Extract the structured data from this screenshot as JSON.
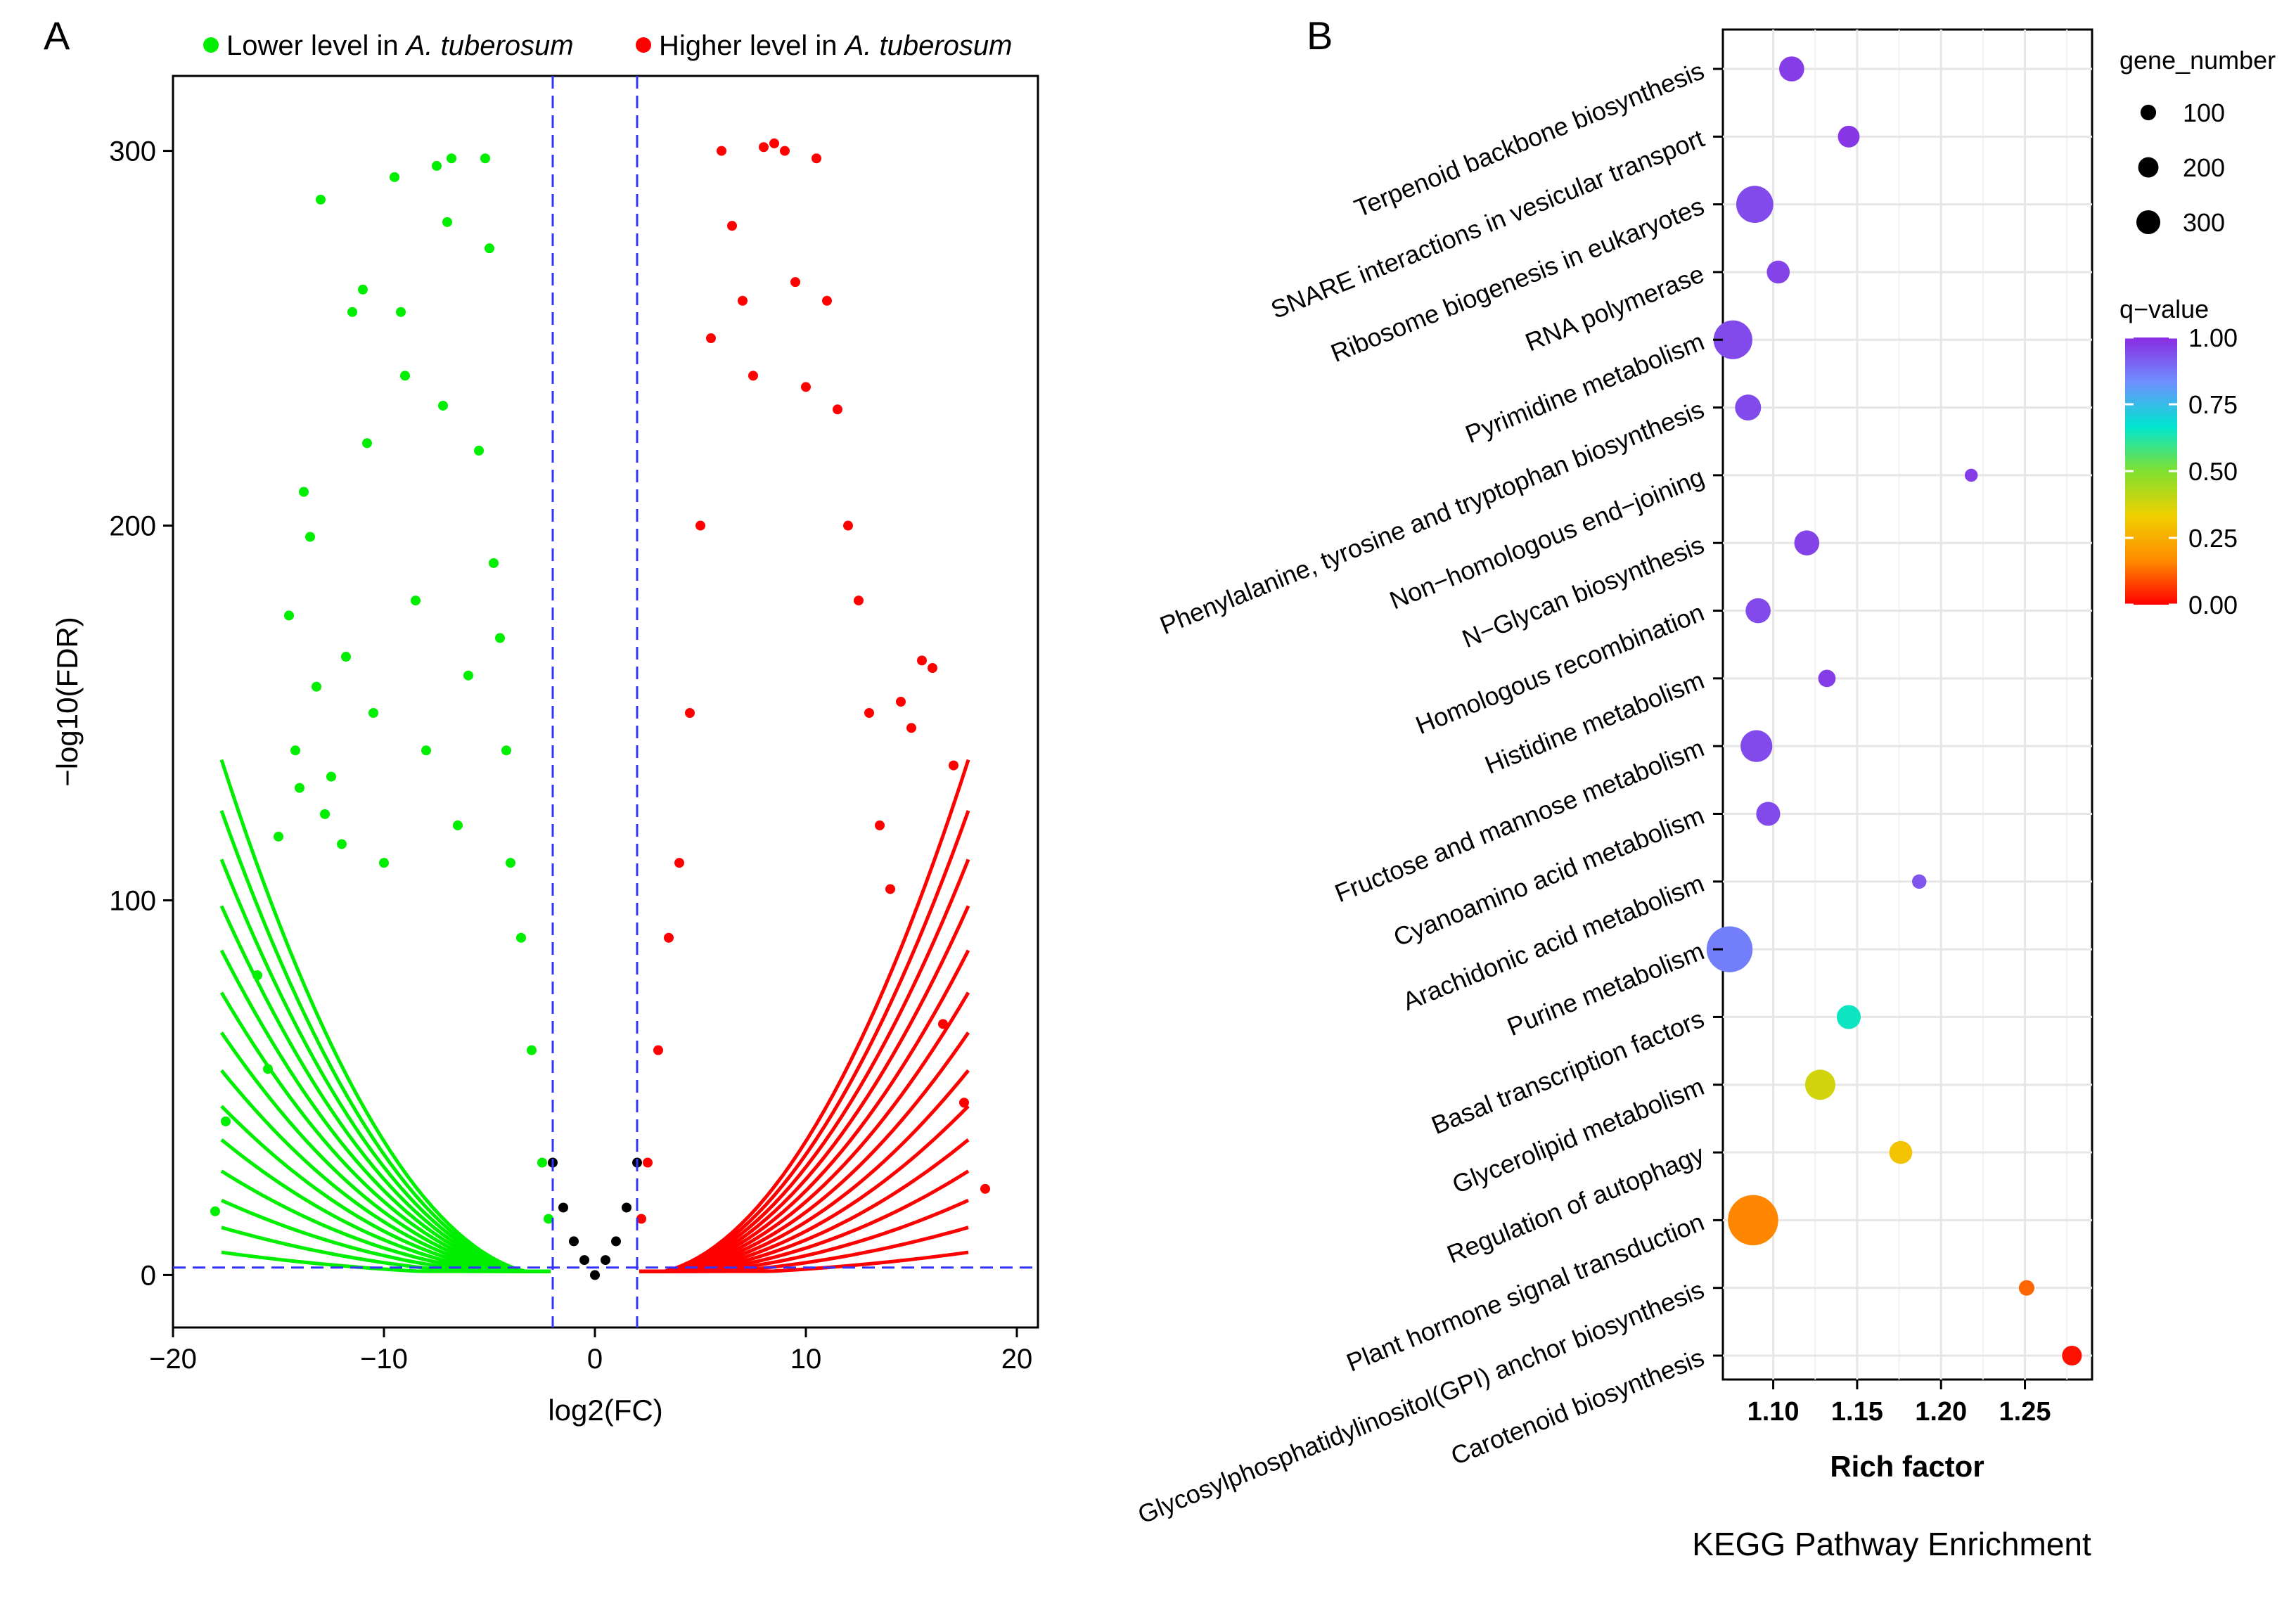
{
  "panel_labels": {
    "a": "A",
    "b": "B"
  },
  "colors": {
    "lower": "#00ee00",
    "higher": "#ff0000",
    "ns": "#000000",
    "threshold": "#3333ff"
  },
  "chart_data": [
    {
      "type": "scatter",
      "panel": "A",
      "title": "",
      "xlabel": "log2(FC)",
      "ylabel": "−log10(FDR)",
      "xlim": [
        -20,
        21
      ],
      "ylim": [
        -14,
        320
      ],
      "xticks": [
        {
          "v": -20,
          "label": "−20"
        },
        {
          "v": -10,
          "label": "−10"
        },
        {
          "v": 0,
          "label": "0"
        },
        {
          "v": 10,
          "label": "10"
        },
        {
          "v": 20,
          "label": "20"
        }
      ],
      "yticks": [
        {
          "v": 0,
          "label": "0"
        },
        {
          "v": 100,
          "label": "100"
        },
        {
          "v": 200,
          "label": "200"
        },
        {
          "v": 300,
          "label": "300"
        }
      ],
      "thresholds": {
        "x": [
          -2,
          2
        ],
        "y": 2
      },
      "legend": [
        {
          "name_prefix": "Lower level in ",
          "name_italic": "A. tuberosum",
          "color": "#00ee00"
        },
        {
          "name_prefix": "Higher level in ",
          "name_italic": "A. tuberosum",
          "color": "#ff0000"
        }
      ],
      "series": [
        {
          "name": "Lower level in A. tuberosum",
          "points": [
            [
              -18,
              17
            ],
            [
              -17.5,
              41
            ],
            [
              -16,
              80
            ],
            [
              -15.5,
              55
            ],
            [
              -15,
              117
            ],
            [
              -14.5,
              176
            ],
            [
              -14.2,
              140
            ],
            [
              -14,
              130
            ],
            [
              -13.8,
              209
            ],
            [
              -13.5,
              197
            ],
            [
              -13.2,
              157
            ],
            [
              -13,
              287
            ],
            [
              -12.8,
              123
            ],
            [
              -12.5,
              133
            ],
            [
              -12,
              115
            ],
            [
              -11.8,
              165
            ],
            [
              -11.5,
              257
            ],
            [
              -11,
              263
            ],
            [
              -10.8,
              222
            ],
            [
              -10.5,
              150
            ],
            [
              -10,
              110
            ],
            [
              -9.5,
              293
            ],
            [
              -9.2,
              257
            ],
            [
              -9,
              240
            ],
            [
              -8.5,
              180
            ],
            [
              -8,
              140
            ],
            [
              -7.5,
              296
            ],
            [
              -7.2,
              232
            ],
            [
              -7,
              281
            ],
            [
              -6.8,
              298
            ],
            [
              -6.5,
              120
            ],
            [
              -6,
              160
            ],
            [
              -5.5,
              220
            ],
            [
              -5.2,
              298
            ],
            [
              -5,
              274
            ],
            [
              -4.8,
              190
            ],
            [
              -4.5,
              170
            ],
            [
              -4.2,
              140
            ],
            [
              -4,
              110
            ],
            [
              -3.5,
              90
            ],
            [
              -3,
              60
            ],
            [
              -2.5,
              30
            ],
            [
              -2.2,
              15
            ]
          ]
        },
        {
          "name": "Higher level in A. tuberosum",
          "points": [
            [
              2.2,
              15
            ],
            [
              2.5,
              30
            ],
            [
              3,
              60
            ],
            [
              3.5,
              90
            ],
            [
              4,
              110
            ],
            [
              4.5,
              150
            ],
            [
              5,
              200
            ],
            [
              5.5,
              250
            ],
            [
              6,
              300
            ],
            [
              6.5,
              280
            ],
            [
              7,
              260
            ],
            [
              7.5,
              240
            ],
            [
              8,
              301
            ],
            [
              8.5,
              302
            ],
            [
              9,
              300
            ],
            [
              9.5,
              265
            ],
            [
              10,
              237
            ],
            [
              10.5,
              298
            ],
            [
              11,
              260
            ],
            [
              11.5,
              231
            ],
            [
              12,
              200
            ],
            [
              12.5,
              180
            ],
            [
              13,
              150
            ],
            [
              13.5,
              120
            ],
            [
              14,
              103
            ],
            [
              14.5,
              153
            ],
            [
              15,
              146
            ],
            [
              15.5,
              164
            ],
            [
              16,
              162
            ],
            [
              16.5,
              67
            ],
            [
              17,
              136
            ],
            [
              17.5,
              46
            ],
            [
              18.5,
              23
            ]
          ]
        },
        {
          "name": "not significant",
          "points": [
            [
              -2,
              30
            ],
            [
              -1.5,
              18
            ],
            [
              -1,
              9
            ],
            [
              -0.5,
              4
            ],
            [
              0,
              0
            ],
            [
              0.5,
              4
            ],
            [
              1,
              9
            ],
            [
              1.5,
              18
            ],
            [
              2,
              30
            ]
          ]
        }
      ]
    },
    {
      "type": "scatter",
      "panel": "B",
      "title": "KEGG Pathway Enrichment",
      "xlabel": "Rich factor",
      "ylabel": "",
      "xlim": [
        1.07,
        1.29
      ],
      "xticks": [
        {
          "v": 1.1,
          "label": "1.10"
        },
        {
          "v": 1.15,
          "label": "1.15"
        },
        {
          "v": 1.2,
          "label": "1.20"
        },
        {
          "v": 1.25,
          "label": "1.25"
        }
      ],
      "categories": [
        "Terpenoid backbone biosynthesis",
        "SNARE interactions in vesicular transport",
        "Ribosome biogenesis in eukaryotes",
        "RNA polymerase",
        "Pyrimidine metabolism",
        "Phenylalanine, tyrosine and tryptophan biosynthesis",
        "Non−homologous end−joining",
        "N−Glycan biosynthesis",
        "Homologous recombination",
        "Histidine metabolism",
        "Fructose and mannose metabolism",
        "Cyanoamino acid metabolism",
        "Arachidonic acid metabolism",
        "Purine metabolism",
        "Basal transcription factors",
        "Glycerolipid metabolism",
        "Regulation of autophagy",
        "Plant hormone signal transduction",
        "Glycosylphosphatidylinositol(GPI) anchor biosynthesis",
        "Carotenoid biosynthesis"
      ],
      "points": [
        {
          "pathway": "Terpenoid backbone biosynthesis",
          "rich_factor": 1.111,
          "gene_number": 90,
          "q_value": 0.97
        },
        {
          "pathway": "SNARE interactions in vesicular transport",
          "rich_factor": 1.145,
          "gene_number": 60,
          "q_value": 0.98
        },
        {
          "pathway": "Ribosome biogenesis in eukaryotes",
          "rich_factor": 1.089,
          "gene_number": 250,
          "q_value": 0.95
        },
        {
          "pathway": "RNA polymerase",
          "rich_factor": 1.103,
          "gene_number": 70,
          "q_value": 0.96
        },
        {
          "pathway": "Pyrimidine metabolism",
          "rich_factor": 1.076,
          "gene_number": 280,
          "q_value": 0.95
        },
        {
          "pathway": "Phenylalanine, tyrosine and tryptophan biosynthesis",
          "rich_factor": 1.085,
          "gene_number": 100,
          "q_value": 0.95
        },
        {
          "pathway": "Non−homologous end−joining",
          "rich_factor": 1.218,
          "gene_number": 10,
          "q_value": 0.97
        },
        {
          "pathway": "N−Glycan biosynthesis",
          "rich_factor": 1.12,
          "gene_number": 90,
          "q_value": 0.96
        },
        {
          "pathway": "Homologous recombination",
          "rich_factor": 1.091,
          "gene_number": 90,
          "q_value": 0.95
        },
        {
          "pathway": "Histidine metabolism",
          "rich_factor": 1.132,
          "gene_number": 30,
          "q_value": 0.97
        },
        {
          "pathway": "Fructose and mannose metabolism",
          "rich_factor": 1.09,
          "gene_number": 170,
          "q_value": 0.95
        },
        {
          "pathway": "Cyanoamino acid metabolism",
          "rich_factor": 1.097,
          "gene_number": 80,
          "q_value": 0.95
        },
        {
          "pathway": "Arachidonic acid metabolism",
          "rich_factor": 1.187,
          "gene_number": 15,
          "q_value": 0.93
        },
        {
          "pathway": "Purine metabolism",
          "rich_factor": 1.074,
          "gene_number": 420,
          "q_value": 0.86
        },
        {
          "pathway": "Basal transcription factors",
          "rich_factor": 1.145,
          "gene_number": 80,
          "q_value": 0.65
        },
        {
          "pathway": "Glycerolipid metabolism",
          "rich_factor": 1.128,
          "gene_number": 150,
          "q_value": 0.38
        },
        {
          "pathway": "Regulation of autophagy",
          "rich_factor": 1.176,
          "gene_number": 70,
          "q_value": 0.3
        },
        {
          "pathway": "Plant hormone signal transduction",
          "rich_factor": 1.088,
          "gene_number": 520,
          "q_value": 0.16
        },
        {
          "pathway": "Glycosylphosphatidylinositol(GPI) anchor biosynthesis",
          "rich_factor": 1.251,
          "gene_number": 20,
          "q_value": 0.12
        },
        {
          "pathway": "Carotenoid biosynthesis",
          "rich_factor": 1.278,
          "gene_number": 45,
          "q_value": 0.02
        }
      ],
      "size_legend": {
        "title": "gene_number",
        "values": [
          100,
          200,
          300
        ],
        "labels": [
          "100",
          "200",
          "300"
        ]
      },
      "color_legend": {
        "title": "q−value",
        "ticks": [
          {
            "v": 1.0,
            "label": "1.00"
          },
          {
            "v": 0.75,
            "label": "0.75"
          },
          {
            "v": 0.5,
            "label": "0.50"
          },
          {
            "v": 0.25,
            "label": "0.25"
          },
          {
            "v": 0.0,
            "label": "0.00"
          }
        ],
        "stops": [
          "#ff0000",
          "#ff8c00",
          "#f0d000",
          "#80e030",
          "#00e6d0",
          "#6f8fff",
          "#8a2be2"
        ]
      }
    }
  ]
}
